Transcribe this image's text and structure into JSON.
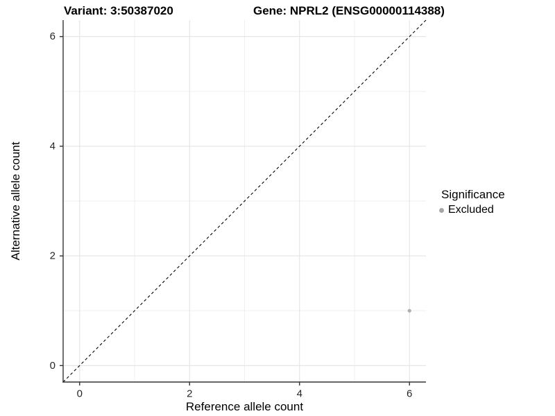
{
  "header": {
    "variant_title": "Variant: 3:50387020",
    "gene_title": "Gene: NPRL2 (ENSG00000114388)"
  },
  "chart_data": {
    "type": "scatter",
    "title_left": "Variant: 3:50387020",
    "title_right": "Gene: NPRL2 (ENSG00000114388)",
    "xlabel": "Reference allele count",
    "ylabel": "Alternative allele count",
    "xlim": [
      -0.3,
      6.3
    ],
    "ylim": [
      -0.3,
      6.3
    ],
    "x_major_ticks": [
      0,
      2,
      4,
      6
    ],
    "y_major_ticks": [
      0,
      2,
      4,
      6
    ],
    "x_minor_ticks": [
      1,
      3,
      5
    ],
    "y_minor_ticks": [
      1,
      3,
      5
    ],
    "grid": "major and minor, light grey on white",
    "reference_line": {
      "type": "identity y=x",
      "style": "dashed",
      "color": "#000000"
    },
    "series": [
      {
        "name": "Excluded",
        "color": "#adadad",
        "points": [
          {
            "x": 6,
            "y": 1
          }
        ]
      }
    ],
    "legend": {
      "title": "Significance",
      "position": "right",
      "items": [
        {
          "label": "Excluded",
          "color": "#a6a6a6"
        }
      ]
    }
  },
  "colors": {
    "background": "#ffffff",
    "grid_major": "#e3e3e3",
    "grid_minor": "#efefef",
    "axis": "#333333",
    "tick_label": "#262626",
    "dashed_line": "#000000",
    "point": "#adadad"
  }
}
